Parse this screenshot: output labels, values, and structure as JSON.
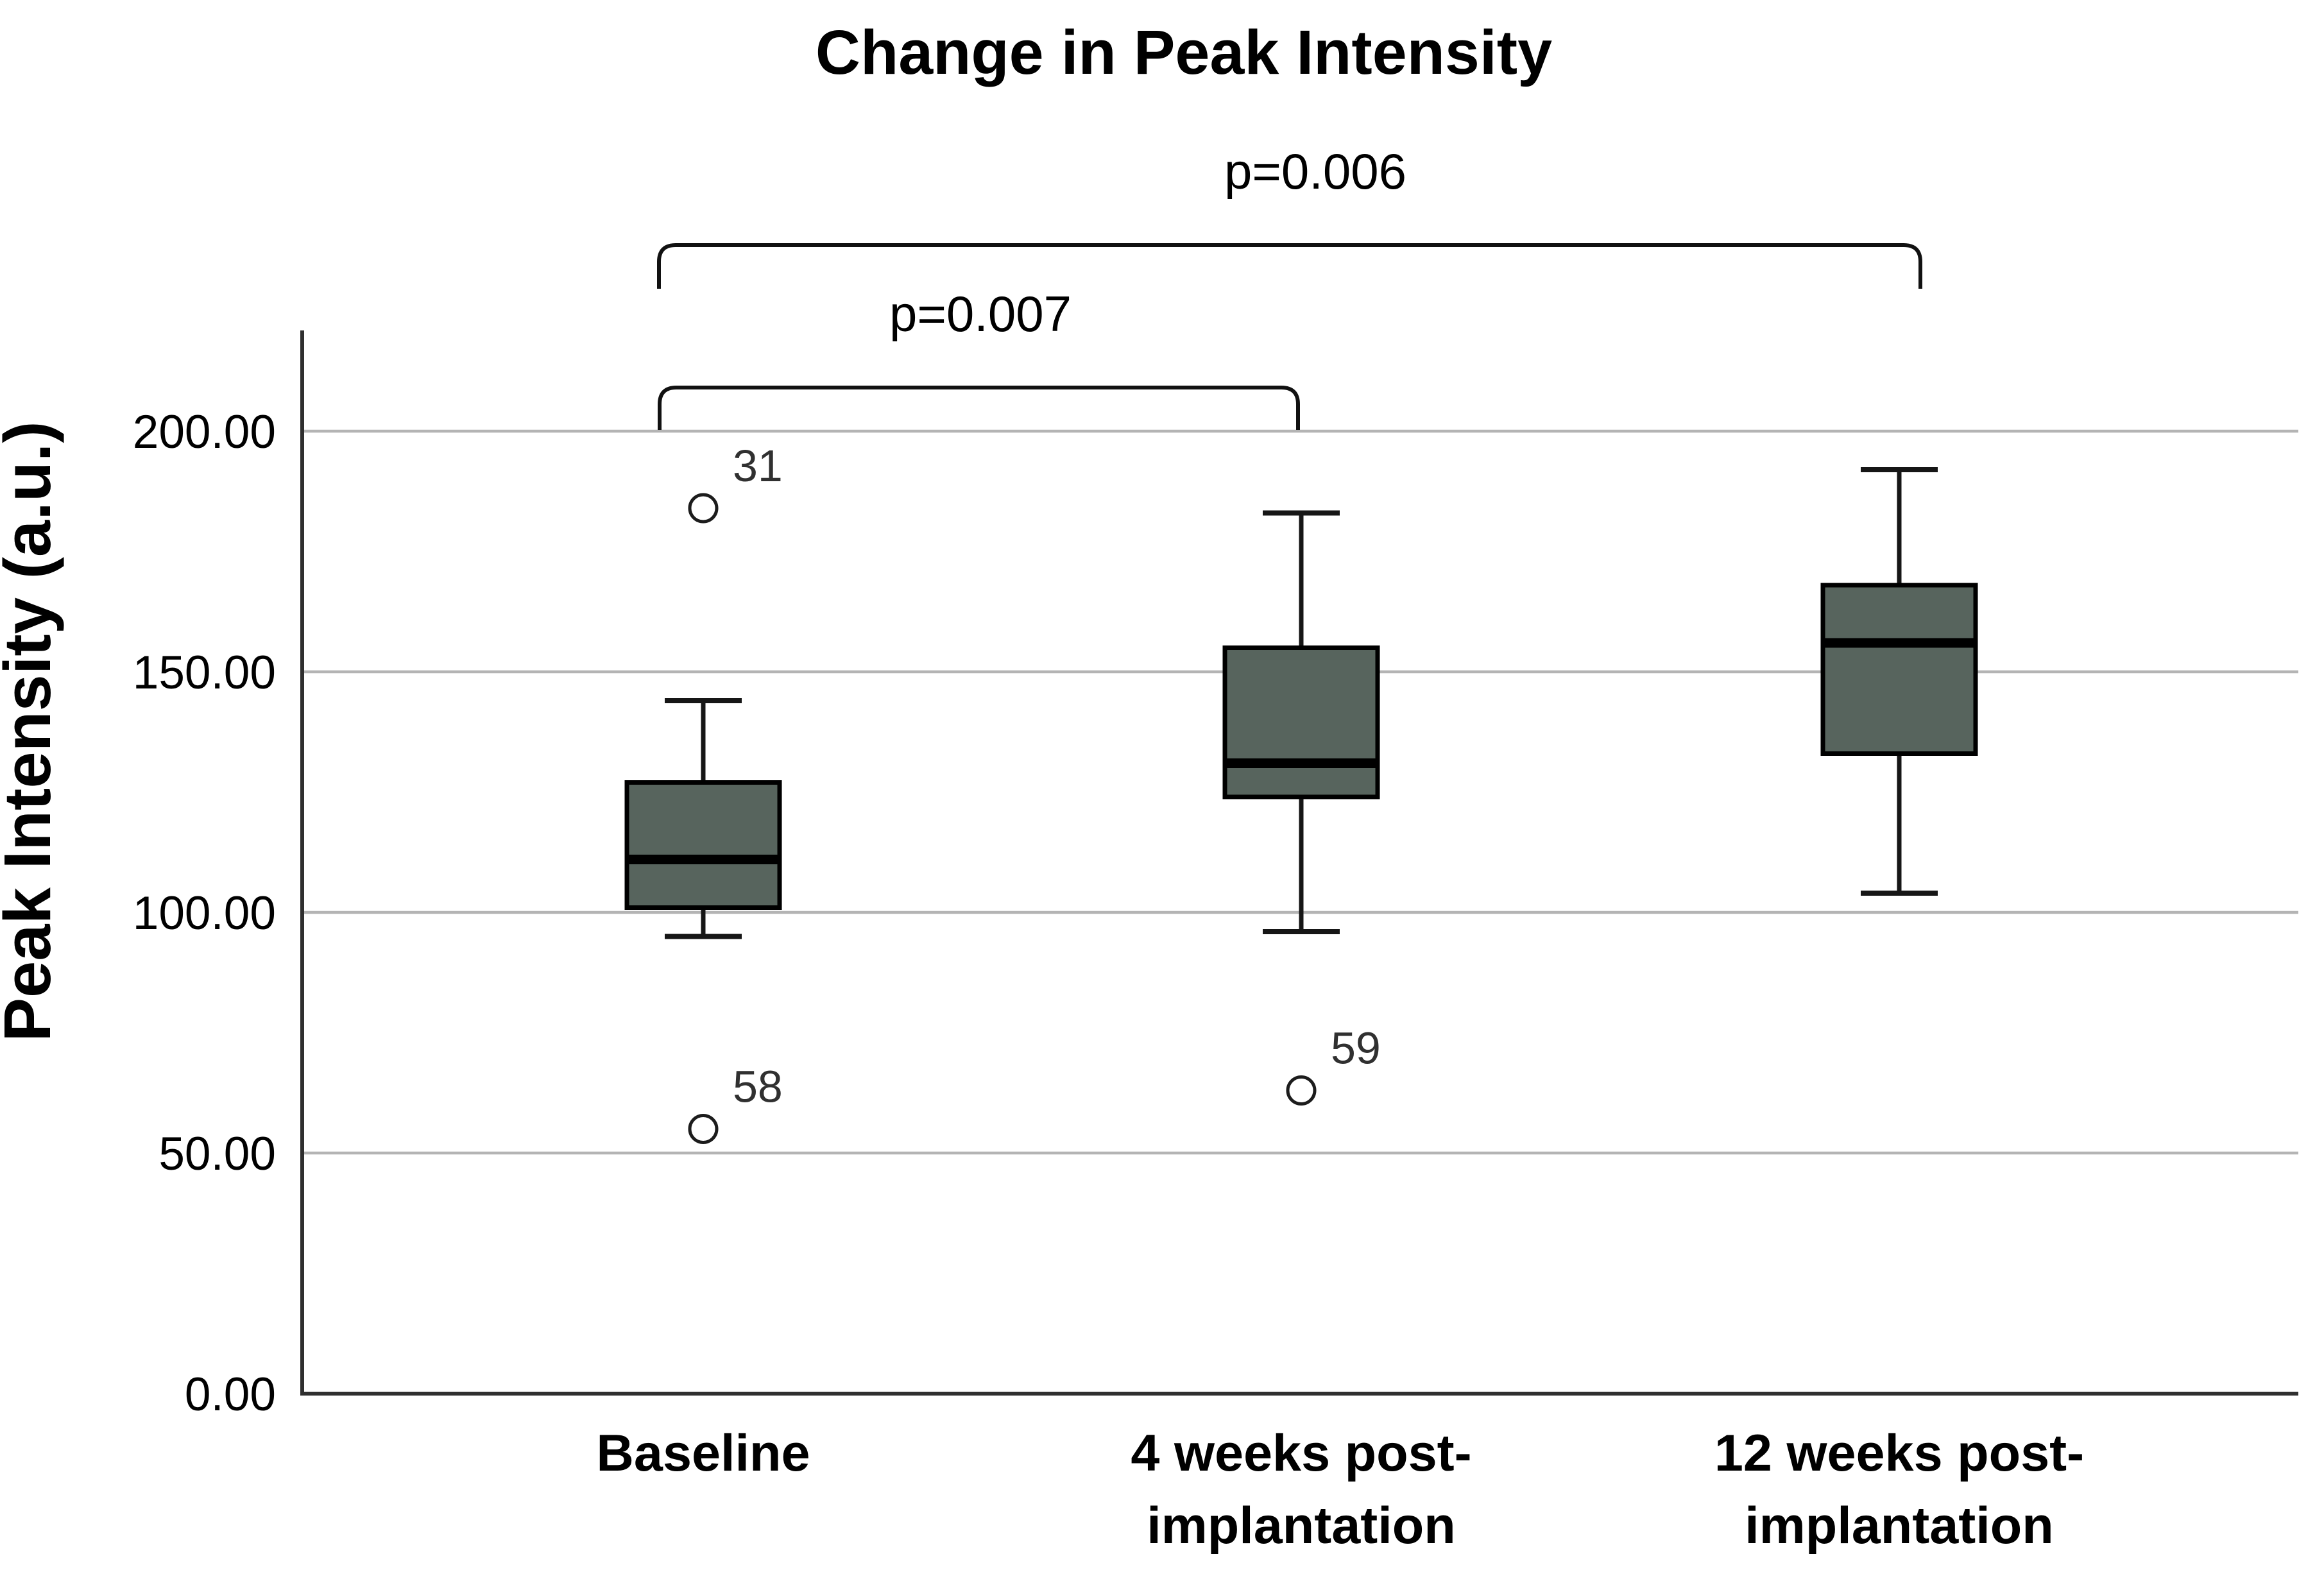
{
  "figure": {
    "title": "Change in Peak Intensity"
  },
  "chart_data": {
    "type": "boxplot",
    "title": "Change in Peak Intensity",
    "xlabel": "",
    "ylabel": "Peak Intensity (a.u.)",
    "ylim": [
      0,
      200
    ],
    "grid": "horizontal",
    "legend": "none",
    "yticks": [
      {
        "label": "0.00",
        "value": 0
      },
      {
        "label": "50.00",
        "value": 50
      },
      {
        "label": "100.00",
        "value": 100
      },
      {
        "label": "150.00",
        "value": 150
      },
      {
        "label": "200.00",
        "value": 200
      }
    ],
    "categories": [
      "Baseline",
      "4 weeks post-implantation",
      "12 weeks post-implantation"
    ],
    "series": [
      {
        "name": "Baseline",
        "label_lines": [
          "Baseline"
        ],
        "whisker_low": 95,
        "q1": 101,
        "median": 111,
        "q3": 127,
        "whisker_high": 144,
        "outliers": [
          {
            "id": "31",
            "value": 184
          },
          {
            "id": "58",
            "value": 55
          }
        ]
      },
      {
        "name": "4 weeks post-implantation",
        "label_lines": [
          "4 weeks post-",
          "implantation"
        ],
        "whisker_low": 96,
        "q1": 124,
        "median": 131,
        "q3": 155,
        "whisker_high": 183,
        "outliers": [
          {
            "id": "59",
            "value": 63
          }
        ]
      },
      {
        "name": "12 weeks post-implantation",
        "label_lines": [
          "12 weeks post-",
          "implantation"
        ],
        "whisker_low": 104,
        "q1": 133,
        "median": 156,
        "q3": 168,
        "whisker_high": 192,
        "outliers": []
      }
    ],
    "comparisons": [
      {
        "label": "p=0.007",
        "between": [
          "Baseline",
          "4 weeks post-implantation"
        ]
      },
      {
        "label": "p=0.006",
        "between": [
          "Baseline",
          "12 weeks post-implantation"
        ]
      }
    ],
    "colors": {
      "box_fill": "#57645D",
      "box_border": "#000000",
      "median": "#000000",
      "whisker": "#161616",
      "gridline": "#b4b4b4",
      "axis": "#2f2f2f",
      "bracket": "#111111",
      "outlier_stroke": "#1c1c1c",
      "outlier_label": "#303030",
      "background": "#ffffff"
    }
  }
}
